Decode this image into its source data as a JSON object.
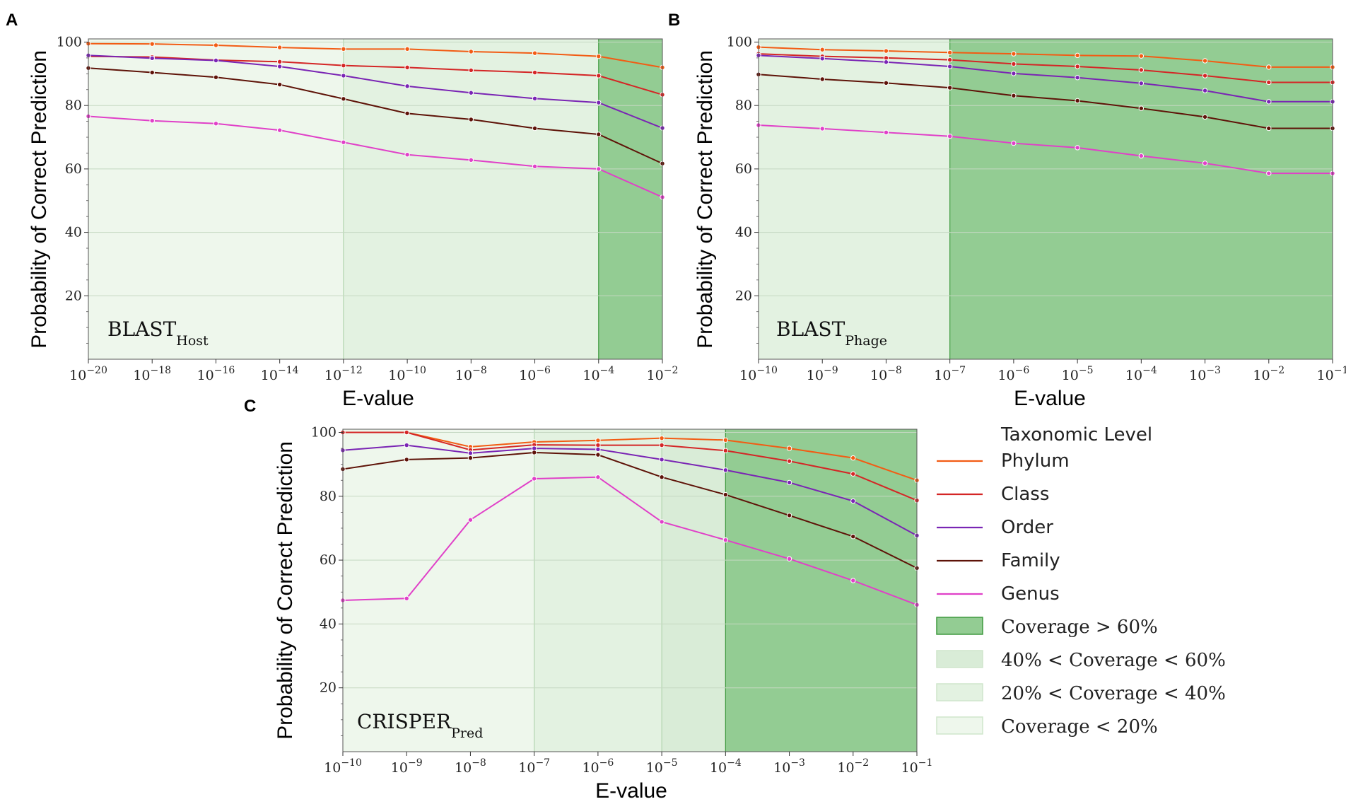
{
  "colors": {
    "phylum": "#f25c14",
    "class": "#d42626",
    "order": "#7a25b4",
    "family": "#5e1308",
    "genus": "#e040c8",
    "cov_gt60": "#93cc93",
    "cov_40_60": "#d9ecd7",
    "cov_20_40": "#e3f2e1",
    "cov_lt20": "#eef7ec",
    "grid": "#c5d8c2"
  },
  "chart_data": [
    {
      "panel": "A",
      "type": "line",
      "inset_label": "BLAST",
      "inset_sub": "Host",
      "xlabel": "E-value",
      "ylabel": "Probability of Correct Prediction",
      "x_ticks": [
        "10",
        "10",
        "10",
        "10",
        "10",
        "10",
        "10",
        "10",
        "10",
        "10"
      ],
      "x_tick_exponents": [
        "−20",
        "−18",
        "−16",
        "−14",
        "−12",
        "−10",
        "−8",
        "−6",
        "−4",
        "−2"
      ],
      "x_exponents": [
        -20,
        -18,
        -16,
        -14,
        -12,
        -10,
        -8,
        -6,
        -4,
        -2
      ],
      "ylim": [
        0,
        101
      ],
      "y_ticks": [
        "20",
        "40",
        "60",
        "80",
        "100"
      ],
      "y_tick_values": [
        20,
        40,
        60,
        80,
        100
      ],
      "coverage_regions": [
        {
          "from": -20,
          "to": -12,
          "level": "cov_lt20"
        },
        {
          "from": -12,
          "to": -4,
          "level": "cov_20_40"
        },
        {
          "from": -4,
          "to": -2,
          "level": "cov_gt60"
        }
      ],
      "series": [
        {
          "name": "Phylum",
          "values": [
            99.5,
            99.4,
            99.0,
            98.3,
            97.8,
            97.8,
            97.0,
            96.5,
            95.5,
            92.0
          ]
        },
        {
          "name": "Class",
          "values": [
            95.5,
            95.3,
            94.3,
            93.8,
            92.6,
            92.0,
            91.1,
            90.4,
            89.4,
            83.4
          ]
        },
        {
          "name": "Order",
          "values": [
            95.8,
            94.9,
            94.2,
            92.3,
            89.4,
            86.1,
            84.0,
            82.2,
            80.9,
            72.9
          ]
        },
        {
          "name": "Family",
          "values": [
            91.8,
            90.4,
            88.9,
            86.6,
            82.1,
            77.5,
            75.6,
            72.8,
            70.9,
            61.7
          ]
        },
        {
          "name": "Genus",
          "values": [
            76.6,
            75.2,
            74.3,
            72.2,
            68.4,
            64.5,
            62.8,
            60.8,
            60.0,
            51.1
          ]
        }
      ]
    },
    {
      "panel": "B",
      "type": "line",
      "inset_label": "BLAST",
      "inset_sub": "Phage",
      "xlabel": "E-value",
      "ylabel": "Probability of Correct Prediction",
      "x_ticks": [
        "10",
        "10",
        "10",
        "10",
        "10",
        "10",
        "10",
        "10",
        "10",
        "10"
      ],
      "x_tick_exponents": [
        "−10",
        "−9",
        "−8",
        "−7",
        "−6",
        "−5",
        "−4",
        "−3",
        "−2",
        "−1"
      ],
      "x_exponents": [
        -10,
        -9,
        -8,
        -7,
        -6,
        -5,
        -4,
        -3,
        -2,
        -1
      ],
      "ylim": [
        0,
        101
      ],
      "y_ticks": [
        "20",
        "40",
        "60",
        "80",
        "100"
      ],
      "y_tick_values": [
        20,
        40,
        60,
        80,
        100
      ],
      "coverage_regions": [
        {
          "from": -10,
          "to": -7,
          "level": "cov_20_40"
        },
        {
          "from": -7,
          "to": -1,
          "level": "cov_gt60"
        }
      ],
      "series": [
        {
          "name": "Phylum",
          "values": [
            98.4,
            97.6,
            97.2,
            96.7,
            96.3,
            95.8,
            95.6,
            94.1,
            92.1,
            92.1
          ]
        },
        {
          "name": "Class",
          "values": [
            96.3,
            95.5,
            95.0,
            94.4,
            93.1,
            92.3,
            91.2,
            89.4,
            87.3,
            87.3
          ]
        },
        {
          "name": "Order",
          "values": [
            95.8,
            94.8,
            93.7,
            92.3,
            90.1,
            88.8,
            87.0,
            84.7,
            81.2,
            81.2
          ]
        },
        {
          "name": "Family",
          "values": [
            89.8,
            88.3,
            87.1,
            85.6,
            83.1,
            81.5,
            79.1,
            76.4,
            72.8,
            72.8
          ]
        },
        {
          "name": "Genus",
          "values": [
            73.8,
            72.7,
            71.5,
            70.3,
            68.1,
            66.7,
            64.1,
            61.8,
            58.6,
            58.6
          ]
        }
      ]
    },
    {
      "panel": "C",
      "type": "line",
      "inset_label": "CRISPER",
      "inset_sub": "Pred",
      "xlabel": "E-value",
      "ylabel": "Probability of Correct Prediction",
      "x_ticks": [
        "10",
        "10",
        "10",
        "10",
        "10",
        "10",
        "10",
        "10",
        "10",
        "10"
      ],
      "x_tick_exponents": [
        "−10",
        "−9",
        "−8",
        "−7",
        "−6",
        "−5",
        "−4",
        "−3",
        "−2",
        "−1"
      ],
      "x_exponents": [
        -10,
        -9,
        -8,
        -7,
        -6,
        -5,
        -4,
        -3,
        -2,
        -1
      ],
      "ylim": [
        0,
        101
      ],
      "y_ticks": [
        "20",
        "40",
        "60",
        "80",
        "100"
      ],
      "y_tick_values": [
        20,
        40,
        60,
        80,
        100
      ],
      "coverage_regions": [
        {
          "from": -10,
          "to": -7,
          "level": "cov_lt20"
        },
        {
          "from": -7,
          "to": -5,
          "level": "cov_20_40"
        },
        {
          "from": -5,
          "to": -4,
          "level": "cov_40_60"
        },
        {
          "from": -4,
          "to": -1,
          "level": "cov_gt60"
        }
      ],
      "series": [
        {
          "name": "Phylum",
          "values": [
            100.0,
            100.0,
            95.5,
            97.0,
            97.5,
            98.2,
            97.6,
            95.0,
            92.0,
            85.0
          ]
        },
        {
          "name": "Class",
          "values": [
            100.0,
            100.0,
            94.5,
            96.1,
            96.0,
            96.0,
            94.3,
            91.0,
            87.0,
            78.7
          ]
        },
        {
          "name": "Order",
          "values": [
            94.4,
            96.0,
            93.5,
            95.0,
            94.7,
            91.5,
            88.2,
            84.3,
            78.5,
            67.7
          ]
        },
        {
          "name": "Family",
          "values": [
            88.5,
            91.5,
            92.0,
            93.7,
            93.0,
            86.0,
            80.5,
            74.0,
            67.4,
            57.5
          ]
        },
        {
          "name": "Genus",
          "values": [
            47.4,
            48.0,
            72.6,
            85.5,
            86.0,
            72.0,
            66.3,
            60.4,
            53.6,
            46.0
          ]
        }
      ]
    }
  ],
  "legend": {
    "title": "Taxonomic Level",
    "series": [
      {
        "key": "phylum",
        "label": "Phylum"
      },
      {
        "key": "class",
        "label": "Class"
      },
      {
        "key": "order",
        "label": "Order"
      },
      {
        "key": "family",
        "label": "Family"
      },
      {
        "key": "genus",
        "label": "Genus"
      }
    ],
    "coverage": [
      {
        "key": "cov_gt60",
        "label": "Coverage > 60%"
      },
      {
        "key": "cov_40_60",
        "label": "40% < Coverage < 60%"
      },
      {
        "key": "cov_20_40",
        "label": "20% < Coverage < 40%"
      },
      {
        "key": "cov_lt20",
        "label": "Coverage < 20%"
      }
    ]
  }
}
